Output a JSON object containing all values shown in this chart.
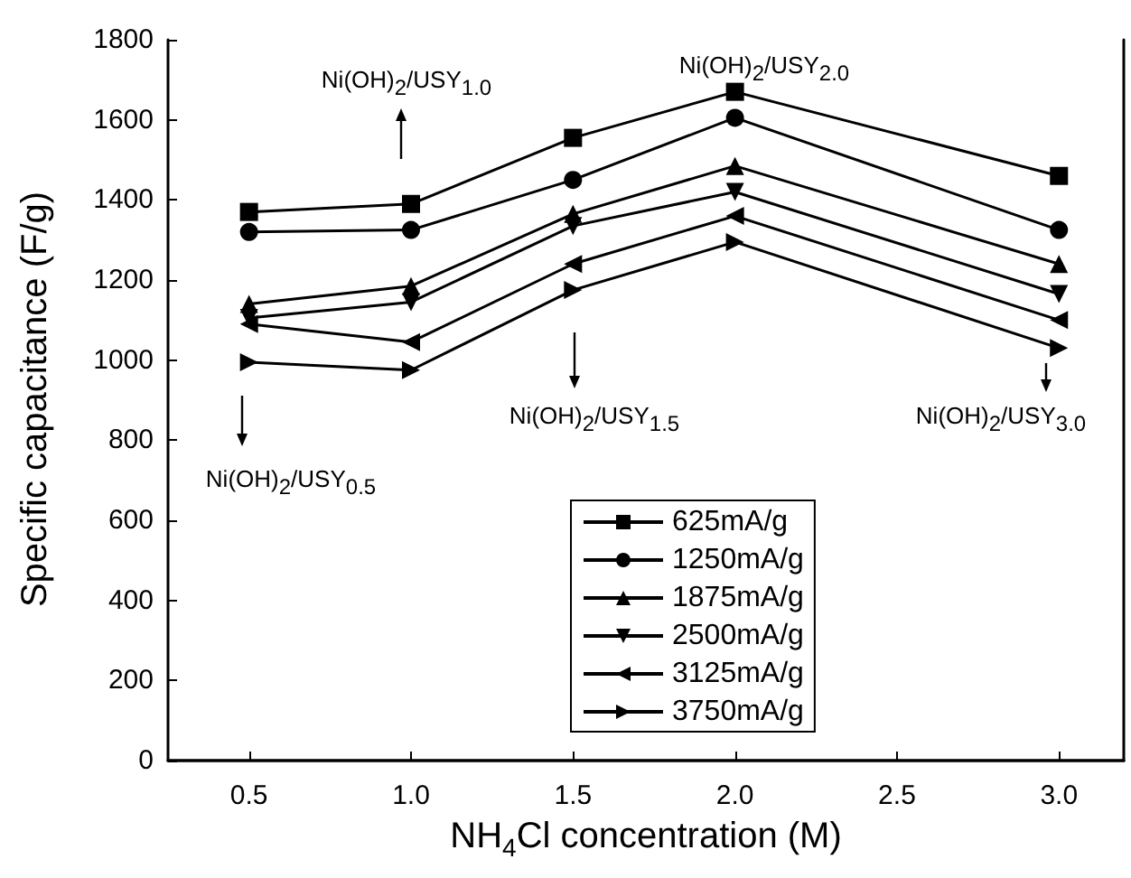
{
  "chart_data": {
    "type": "line",
    "xlabel": "NH$_{4}$Cl concentration (M)",
    "ylabel": "Specific capacitance (F/g)",
    "x": [
      0.5,
      1.0,
      1.5,
      2.0,
      3.0
    ],
    "xlim": [
      0.25,
      3.2
    ],
    "xticks": [
      {
        "value": 0.5,
        "label": "0.5"
      },
      {
        "value": 1.0,
        "label": "1.0"
      },
      {
        "value": 1.5,
        "label": "1.5"
      },
      {
        "value": 2.0,
        "label": "2.0"
      },
      {
        "value": 2.5,
        "label": "2.5"
      },
      {
        "value": 3.0,
        "label": "3.0"
      }
    ],
    "ylim": [
      0,
      1800
    ],
    "yticks": [
      0,
      200,
      400,
      600,
      800,
      1000,
      1200,
      1400,
      1600,
      1800
    ],
    "grid": false,
    "legend": "bottom",
    "series": [
      {
        "name": "625mA/g",
        "color": "#000000",
        "marker": "square",
        "values": [
          1370,
          1390,
          1555,
          1670,
          1460
        ]
      },
      {
        "name": "1250mA/g",
        "color": "#000000",
        "marker": "circle",
        "values": [
          1320,
          1325,
          1450,
          1605,
          1325
        ]
      },
      {
        "name": "1875mA/g",
        "color": "#000000",
        "marker": "triangle",
        "values": [
          1140,
          1185,
          1365,
          1485,
          1240
        ]
      },
      {
        "name": "2500mA/g",
        "color": "#000000",
        "marker": "triangle-down",
        "values": [
          1105,
          1145,
          1335,
          1420,
          1165
        ]
      },
      {
        "name": "3125mA/g",
        "color": "#000000",
        "marker": "triangle-left",
        "values": [
          1090,
          1045,
          1240,
          1360,
          1100
        ]
      },
      {
        "name": "3750mA/g",
        "color": "#000000",
        "marker": "triangle-right",
        "values": [
          995,
          975,
          1175,
          1295,
          1030
        ]
      }
    ],
    "annotations": [
      "Ni(OH)$_{2}$/USY$_{0.5}$",
      "Ni(OH)$_{2}$/USY$_{1.0}$",
      "Ni(OH)$_{2}$/USY$_{1.5}$",
      "Ni(OH)$_{2}$/USY$_{2.0}$",
      "Ni(OH)$_{2}$/USY$_{3.0}$"
    ]
  }
}
